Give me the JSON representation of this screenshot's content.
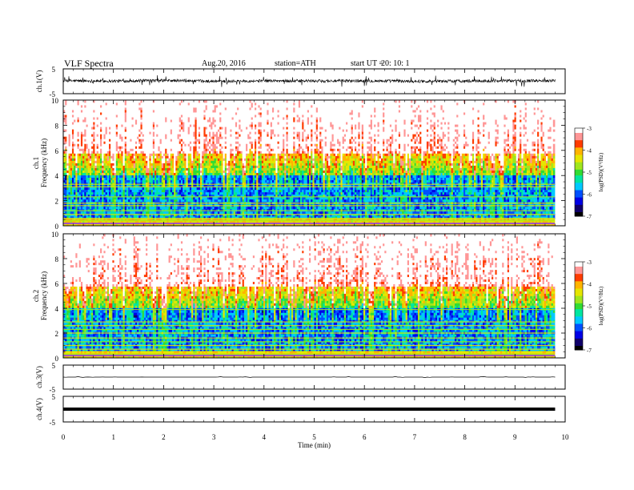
{
  "header": {
    "title": "VLF  Spectra",
    "date": "Aug.20, 2016",
    "station": "station=ATH",
    "start_label": "start  UT =",
    "start_time": "20: 10: 1"
  },
  "colors": {
    "scale": [
      "#000000",
      "#10006a",
      "#0000e6",
      "#0050ff",
      "#00c8ff",
      "#00e6a0",
      "#32dc32",
      "#a0e61e",
      "#e6e600",
      "#ffb400",
      "#ff3c00",
      "#ff9696",
      "#ffffff"
    ],
    "trace": "#000000"
  },
  "chart_data": [
    {
      "type": "line",
      "ylabel": "ch.1(V)",
      "ylim": [
        -5,
        5
      ],
      "yticks": [
        "5",
        "-5"
      ],
      "xlim": [
        0,
        10
      ],
      "description_of_values": "noisy VLF waveform around 0 V with spikes",
      "x": [
        0,
        1,
        2,
        3,
        4,
        5,
        6,
        7,
        8,
        9,
        9.8
      ],
      "y": [
        0.2,
        0.1,
        0.3,
        0.0,
        0.2,
        0.1,
        0.2,
        0.0,
        0.1,
        0.2,
        0.3
      ]
    },
    {
      "type": "heatmap",
      "ylabel": "Frequency  (kHz)",
      "channel_label": "ch.1",
      "ylim": [
        0,
        10
      ],
      "yticks": [
        "0",
        "2",
        "4",
        "6",
        "8",
        "10"
      ],
      "xlim": [
        0,
        10
      ],
      "colorbar": {
        "label": "log(PSD)(V²/Hz)",
        "range": [
          -7,
          -3
        ],
        "ticks": [
          "-3",
          "-4",
          "-5",
          "-6",
          "-7"
        ]
      },
      "horizontal_lines_khz": [
        0.4,
        0.6,
        0.9,
        1.2,
        1.6,
        1.8,
        2.3,
        3.1,
        3.3
      ]
    },
    {
      "type": "heatmap",
      "ylabel": "Frequency  (kHz)",
      "channel_label": "ch.2",
      "ylim": [
        0,
        10
      ],
      "yticks": [
        "0",
        "2",
        "4",
        "6",
        "8",
        "10"
      ],
      "xlim": [
        0,
        10
      ],
      "colorbar": {
        "label": "log(PSD)(V²/Hz)",
        "range": [
          -7,
          -3
        ],
        "ticks": [
          "-3",
          "-4",
          "-5",
          "-6",
          "-7"
        ]
      },
      "horizontal_lines_khz": [
        0.3,
        0.7,
        1.0,
        1.3,
        1.6,
        2.0,
        2.3,
        2.6,
        2.9,
        3.9
      ]
    },
    {
      "type": "line",
      "ylabel": "ch.3(V)",
      "ylim": [
        -5,
        5
      ],
      "yticks": [
        "5",
        "-5"
      ],
      "xlim": [
        0,
        10
      ],
      "x": [
        0,
        9.8
      ],
      "y": [
        0,
        0
      ]
    },
    {
      "type": "line",
      "ylabel": "ch.4(V)",
      "ylim": [
        -5,
        5
      ],
      "yticks": [
        "5",
        "-5"
      ],
      "xlim": [
        0,
        10
      ],
      "x": [
        0,
        9.8
      ],
      "y": [
        0,
        0
      ]
    }
  ],
  "xaxis": {
    "label": "Time  (min)",
    "ticks": [
      "0",
      "1",
      "2",
      "3",
      "4",
      "5",
      "6",
      "7",
      "8",
      "9",
      "10"
    ]
  }
}
